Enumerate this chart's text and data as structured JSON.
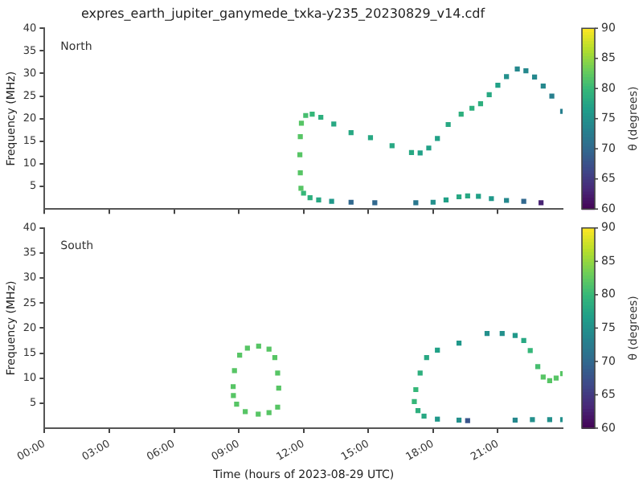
{
  "chart_data": [
    {
      "type": "scatter",
      "title": "expres_earth_jupiter_ganymede_txka-y235_20230829_v14.cdf",
      "ylabel": "Frequency (MHz)",
      "clabel": "θ (degrees)",
      "annotations": [
        "North"
      ],
      "marker": "square",
      "tick_labels": "y",
      "xlim": [
        0,
        24
      ],
      "xticks": [
        0,
        3,
        6,
        9,
        12,
        15,
        18,
        21
      ],
      "ylim": [
        0,
        40
      ],
      "yticks": [
        5,
        10,
        15,
        20,
        25,
        30,
        35,
        40
      ],
      "clim": [
        60,
        90
      ],
      "cticks": [
        60,
        65,
        70,
        75,
        80,
        85,
        90
      ],
      "x": [
        11.88,
        11.85,
        11.83,
        11.85,
        11.9,
        12.1,
        12.4,
        12.8,
        13.4,
        14.2,
        15.1,
        16.1,
        17.0,
        17.4,
        17.8,
        18.2,
        18.7,
        19.3,
        19.8,
        20.2,
        20.6,
        21.0,
        21.4,
        21.9,
        22.3,
        22.7,
        23.1,
        23.5,
        24.0,
        12.0,
        12.3,
        12.7,
        13.3,
        14.2,
        15.3,
        17.2,
        18.0,
        18.6,
        19.2,
        19.6,
        20.1,
        20.7,
        21.4,
        22.2,
        23.0
      ],
      "values": [
        4.6,
        8,
        12,
        16,
        19,
        20.7,
        21,
        20.3,
        18.8,
        16.9,
        15.8,
        14.0,
        12.5,
        12.4,
        13.5,
        15.6,
        18.7,
        21.0,
        22.3,
        23.3,
        25.3,
        27.4,
        29.3,
        31.0,
        30.6,
        29.2,
        27.2,
        25.0,
        21.6,
        3.5,
        2.5,
        2.0,
        1.7,
        1.5,
        1.4,
        1.4,
        1.5,
        2.0,
        2.7,
        2.9,
        2.8,
        2.3,
        1.9,
        1.7,
        1.4
      ],
      "cvalues": [
        82,
        82,
        82,
        82,
        82,
        81,
        80,
        79,
        78,
        78,
        78,
        78,
        78,
        77,
        77,
        77,
        78,
        79,
        79,
        79,
        78,
        77,
        75,
        74,
        74,
        74,
        74,
        73,
        73,
        80,
        79,
        78,
        76,
        70,
        70,
        72,
        75,
        77,
        78,
        78,
        77,
        76,
        74,
        70,
        63
      ]
    },
    {
      "type": "scatter",
      "xlabel": "Time (hours of 2023-08-29 UTC)",
      "ylabel": "Frequency (MHz)",
      "clabel": "θ (degrees)",
      "annotations": [
        "South"
      ],
      "marker": "square",
      "xlim": [
        0,
        24
      ],
      "xticks": [
        {
          "value": 0,
          "label": "00:00"
        },
        {
          "value": 3,
          "label": "03:00"
        },
        {
          "value": 6,
          "label": "06:00"
        },
        {
          "value": 9,
          "label": "09:00"
        },
        {
          "value": 12,
          "label": "12:00"
        },
        {
          "value": 15,
          "label": "15:00"
        },
        {
          "value": 18,
          "label": "18:00"
        },
        {
          "value": 21,
          "label": "21:00"
        }
      ],
      "ylim": [
        0,
        40
      ],
      "yticks": [
        5,
        10,
        15,
        20,
        25,
        30,
        35,
        40
      ],
      "clim": [
        60,
        90
      ],
      "cticks": [
        60,
        65,
        70,
        75,
        80,
        85,
        90
      ],
      "x": [
        8.74,
        8.8,
        9.04,
        9.4,
        9.92,
        10.4,
        10.67,
        10.8,
        10.85,
        10.8,
        10.4,
        9.9,
        9.3,
        8.9,
        8.75,
        17.13,
        17.2,
        17.4,
        17.7,
        18.2,
        19.2,
        20.5,
        21.2,
        21.8,
        22.2,
        22.5,
        22.85,
        23.1,
        23.4,
        23.7,
        24.0,
        17.3,
        17.58,
        18.2,
        19.2,
        19.6,
        21.8,
        22.6,
        23.4,
        24.0
      ],
      "values": [
        8.3,
        11.5,
        14.6,
        16.0,
        16.4,
        15.8,
        14.1,
        11,
        8,
        4.2,
        3.1,
        2.8,
        3.3,
        4.8,
        6.5,
        5.3,
        7.7,
        11,
        14.1,
        15.6,
        17.0,
        18.9,
        18.9,
        18.5,
        17.5,
        15.5,
        12.3,
        10.2,
        9.5,
        10,
        10.9,
        3.5,
        2.4,
        1.8,
        1.6,
        1.5,
        1.6,
        1.7,
        1.7,
        1.7
      ],
      "cvalues": [
        82,
        82,
        82,
        82,
        82,
        82,
        82,
        82,
        82,
        82,
        82,
        82,
        82,
        82,
        82,
        80,
        80,
        79,
        78,
        77,
        76,
        75,
        75,
        76,
        78,
        80,
        81,
        82,
        82,
        82,
        82,
        79,
        78,
        76,
        75,
        68,
        74,
        75,
        75,
        75
      ]
    }
  ]
}
